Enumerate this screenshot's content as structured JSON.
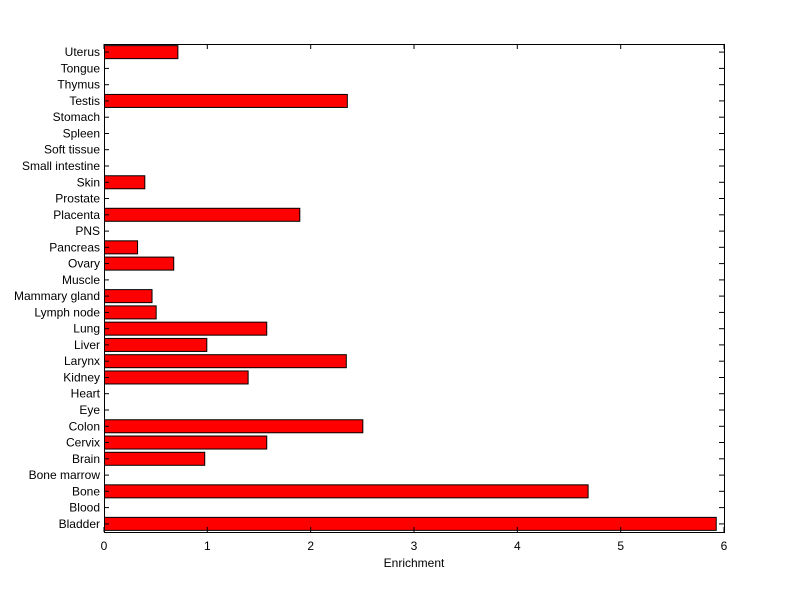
{
  "chart_data": {
    "type": "bar",
    "orientation": "horizontal",
    "categories": [
      "Bladder",
      "Blood",
      "Bone",
      "Bone marrow",
      "Brain",
      "Cervix",
      "Colon",
      "Eye",
      "Heart",
      "Kidney",
      "Larynx",
      "Liver",
      "Lung",
      "Lymph node",
      "Mammary gland",
      "Muscle",
      "Ovary",
      "Pancreas",
      "PNS",
      "Placenta",
      "Prostate",
      "Skin",
      "Small intestine",
      "Soft tissue",
      "Spleen",
      "Stomach",
      "Testis",
      "Thymus",
      "Tongue",
      "Uterus"
    ],
    "values": [
      5.92,
      0,
      4.68,
      0,
      0.97,
      1.57,
      2.5,
      0,
      0,
      1.39,
      2.34,
      0.99,
      1.57,
      0.5,
      0.46,
      0,
      0.67,
      0.32,
      0,
      1.89,
      0,
      0.39,
      0,
      0,
      0,
      0,
      2.35,
      0,
      0,
      0.71
    ],
    "xlabel": "Enrichment",
    "ylabel": "",
    "title": "",
    "xlim": [
      0,
      6
    ],
    "xticks": [
      0,
      1,
      2,
      3,
      4,
      5,
      6
    ],
    "grid": false,
    "bar_color": "#ff0000",
    "bar_edge_color": "#000000"
  }
}
